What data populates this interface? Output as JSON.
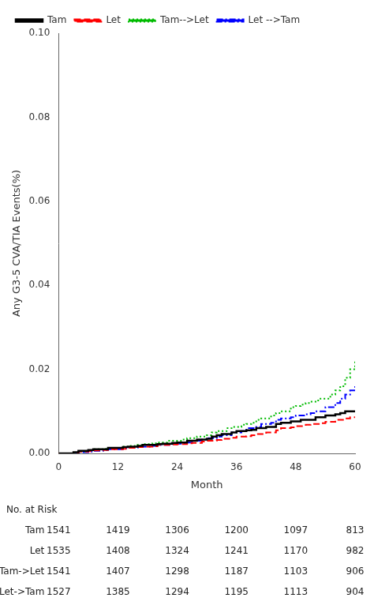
{
  "chart_data": {
    "type": "step",
    "title": "",
    "ylabel": "Any G3-5 CVA/TIA Events(%)",
    "xlabel": "Month",
    "xlim": [
      0,
      60
    ],
    "ylim": [
      0.0,
      0.1
    ],
    "xticks": [
      0,
      12,
      24,
      36,
      48,
      60
    ],
    "yticks": [
      {
        "value": 0.0,
        "label": "0.00"
      },
      {
        "value": 0.02,
        "label": "0.02"
      },
      {
        "value": 0.04,
        "label": "0.04"
      },
      {
        "value": 0.06,
        "label": "0.06"
      },
      {
        "value": 0.08,
        "label": "0.08"
      },
      {
        "value": 0.1,
        "label": "0.10"
      }
    ],
    "grid": false,
    "legend": "upper left",
    "x": [
      0,
      1,
      2,
      3,
      4,
      5,
      6,
      7,
      8,
      9,
      10,
      11,
      12,
      13,
      14,
      15,
      16,
      17,
      18,
      19,
      20,
      21,
      22,
      23,
      24,
      25,
      26,
      27,
      28,
      29,
      30,
      31,
      32,
      33,
      34,
      35,
      36,
      37,
      38,
      39,
      40,
      41,
      42,
      43,
      44,
      45,
      46,
      47,
      48,
      49,
      50,
      51,
      52,
      53,
      54,
      55,
      56,
      57,
      58,
      59,
      60
    ],
    "series": [
      {
        "name": "Tam",
        "color": "#000000",
        "line_style": "solid",
        "values": [
          0.0,
          0.0,
          0.0,
          0.0003,
          0.0006,
          0.0006,
          0.0008,
          0.001,
          0.001,
          0.001,
          0.0013,
          0.0013,
          0.0013,
          0.0015,
          0.0016,
          0.0016,
          0.0018,
          0.002,
          0.002,
          0.002,
          0.0022,
          0.0023,
          0.0023,
          0.0025,
          0.0026,
          0.0026,
          0.003,
          0.003,
          0.0033,
          0.0033,
          0.0035,
          0.004,
          0.0043,
          0.0046,
          0.0046,
          0.005,
          0.0053,
          0.0053,
          0.0055,
          0.0056,
          0.006,
          0.006,
          0.0063,
          0.0063,
          0.007,
          0.0073,
          0.0073,
          0.0076,
          0.0076,
          0.008,
          0.008,
          0.008,
          0.0086,
          0.0086,
          0.009,
          0.009,
          0.0093,
          0.0096,
          0.01,
          0.01,
          0.01
        ]
      },
      {
        "name": "Let",
        "color": "#ff0000",
        "line_style": "dashed",
        "values": [
          0.0,
          0.0,
          0.0,
          0.0002,
          0.0004,
          0.0004,
          0.0005,
          0.0007,
          0.0007,
          0.0008,
          0.001,
          0.001,
          0.001,
          0.0011,
          0.0013,
          0.0013,
          0.0015,
          0.0016,
          0.0016,
          0.0017,
          0.002,
          0.002,
          0.002,
          0.0021,
          0.0022,
          0.0022,
          0.0024,
          0.0025,
          0.0025,
          0.0028,
          0.003,
          0.003,
          0.0032,
          0.0035,
          0.0035,
          0.0037,
          0.004,
          0.004,
          0.0041,
          0.0043,
          0.0046,
          0.0046,
          0.005,
          0.005,
          0.0055,
          0.006,
          0.006,
          0.0062,
          0.0065,
          0.0065,
          0.0068,
          0.007,
          0.007,
          0.0072,
          0.0075,
          0.0075,
          0.008,
          0.008,
          0.0083,
          0.0086,
          0.0086
        ]
      },
      {
        "name": "Tam-->Let",
        "color": "#00bb00",
        "line_style": "dotted",
        "values": [
          0.0,
          0.0,
          0.0,
          0.0002,
          0.0004,
          0.0004,
          0.0007,
          0.001,
          0.001,
          0.0011,
          0.0013,
          0.0013,
          0.0013,
          0.0016,
          0.0018,
          0.0018,
          0.002,
          0.0022,
          0.0022,
          0.0024,
          0.0026,
          0.0026,
          0.003,
          0.003,
          0.003,
          0.0033,
          0.0036,
          0.0036,
          0.004,
          0.004,
          0.0043,
          0.005,
          0.0053,
          0.0053,
          0.006,
          0.0063,
          0.0063,
          0.0068,
          0.007,
          0.0073,
          0.008,
          0.0083,
          0.0083,
          0.009,
          0.0096,
          0.01,
          0.01,
          0.011,
          0.0113,
          0.0116,
          0.012,
          0.0123,
          0.0126,
          0.013,
          0.013,
          0.014,
          0.015,
          0.016,
          0.018,
          0.02,
          0.022
        ]
      },
      {
        "name": "Let -->Tam",
        "color": "#0000ff",
        "line_style": "dashdot",
        "values": [
          0.0,
          0.0,
          0.0,
          0.0001,
          0.0003,
          0.0003,
          0.0004,
          0.0006,
          0.0006,
          0.0008,
          0.001,
          0.001,
          0.001,
          0.0012,
          0.0013,
          0.0013,
          0.0015,
          0.0016,
          0.0016,
          0.0018,
          0.002,
          0.002,
          0.002,
          0.0022,
          0.0023,
          0.0023,
          0.0026,
          0.003,
          0.003,
          0.0033,
          0.0036,
          0.0036,
          0.004,
          0.0043,
          0.0043,
          0.005,
          0.005,
          0.0053,
          0.006,
          0.006,
          0.0063,
          0.007,
          0.007,
          0.0073,
          0.008,
          0.0083,
          0.0083,
          0.0086,
          0.009,
          0.009,
          0.0093,
          0.0096,
          0.01,
          0.01,
          0.011,
          0.011,
          0.012,
          0.013,
          0.014,
          0.015,
          0.016
        ]
      }
    ],
    "at_risk": {
      "title": "No. at Risk",
      "labels": [
        "Tam",
        "Let",
        "Tam->Let",
        "Let->Tam"
      ],
      "timepoints": [
        0,
        12,
        24,
        36,
        48,
        60
      ],
      "values": [
        [
          1541,
          1419,
          1306,
          1200,
          1097,
          813
        ],
        [
          1535,
          1408,
          1324,
          1241,
          1170,
          982
        ],
        [
          1541,
          1407,
          1298,
          1187,
          1103,
          906
        ],
        [
          1527,
          1385,
          1294,
          1195,
          1113,
          904
        ]
      ]
    }
  }
}
